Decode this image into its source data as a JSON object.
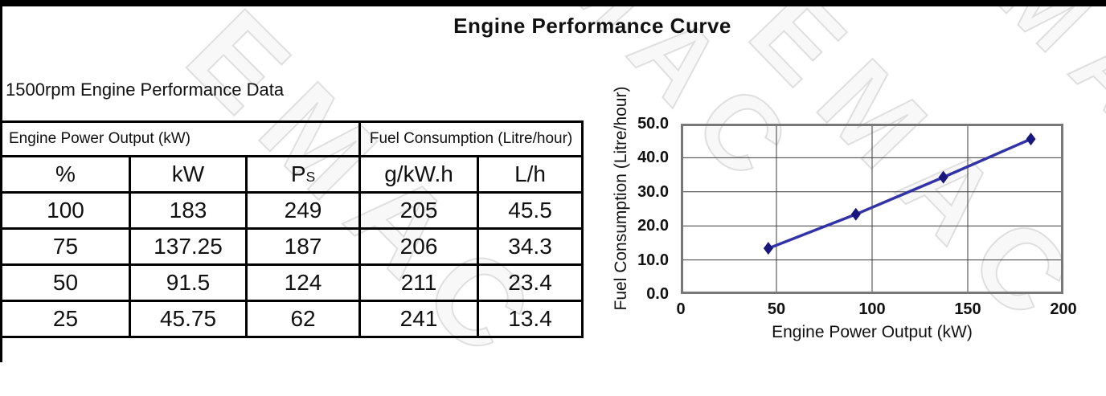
{
  "page": {
    "title": "Engine Performance Curve",
    "subtitle": "1500rpm Engine Performance Data",
    "watermark": "EMAC"
  },
  "table": {
    "header_groups": [
      {
        "label": "Engine Power Output (kW)"
      },
      {
        "label": "Fuel Consumption (Litre/hour)"
      }
    ],
    "columns": [
      "%",
      "kW",
      "P",
      "g/kW.h",
      "L/h"
    ],
    "ps_subscript": "S",
    "rows": [
      [
        "100",
        "183",
        "249",
        "205",
        "45.5"
      ],
      [
        "75",
        "137.25",
        "187",
        "206",
        "34.3"
      ],
      [
        "50",
        "91.5",
        "124",
        "211",
        "23.4"
      ],
      [
        "25",
        "45.75",
        "62",
        "241",
        "13.4"
      ]
    ]
  },
  "chart_data": {
    "type": "line",
    "title": "Engine Performance Curve",
    "xlabel": "Engine Power Output (kW)",
    "ylabel": "Fuel Consumption (Litre/hour)",
    "xlim": [
      0,
      200
    ],
    "ylim": [
      0,
      50
    ],
    "xticks": [
      "0",
      "50",
      "100",
      "150",
      "200"
    ],
    "yticks": [
      "0.0",
      "10.0",
      "20.0",
      "30.0",
      "40.0",
      "50.0"
    ],
    "grid": true,
    "legend": "none",
    "series": [
      {
        "name": "Fuel Consumption (Litre/hour)",
        "x": [
          45.75,
          91.5,
          137.25,
          183
        ],
        "y": [
          13.4,
          23.4,
          34.3,
          45.5
        ],
        "line_color": "#3333A8",
        "marker_color": "#17177E",
        "marker": "diamond"
      }
    ],
    "colors": {
      "plot_border": "#787878",
      "grid_line": "#3c3c3c"
    }
  }
}
